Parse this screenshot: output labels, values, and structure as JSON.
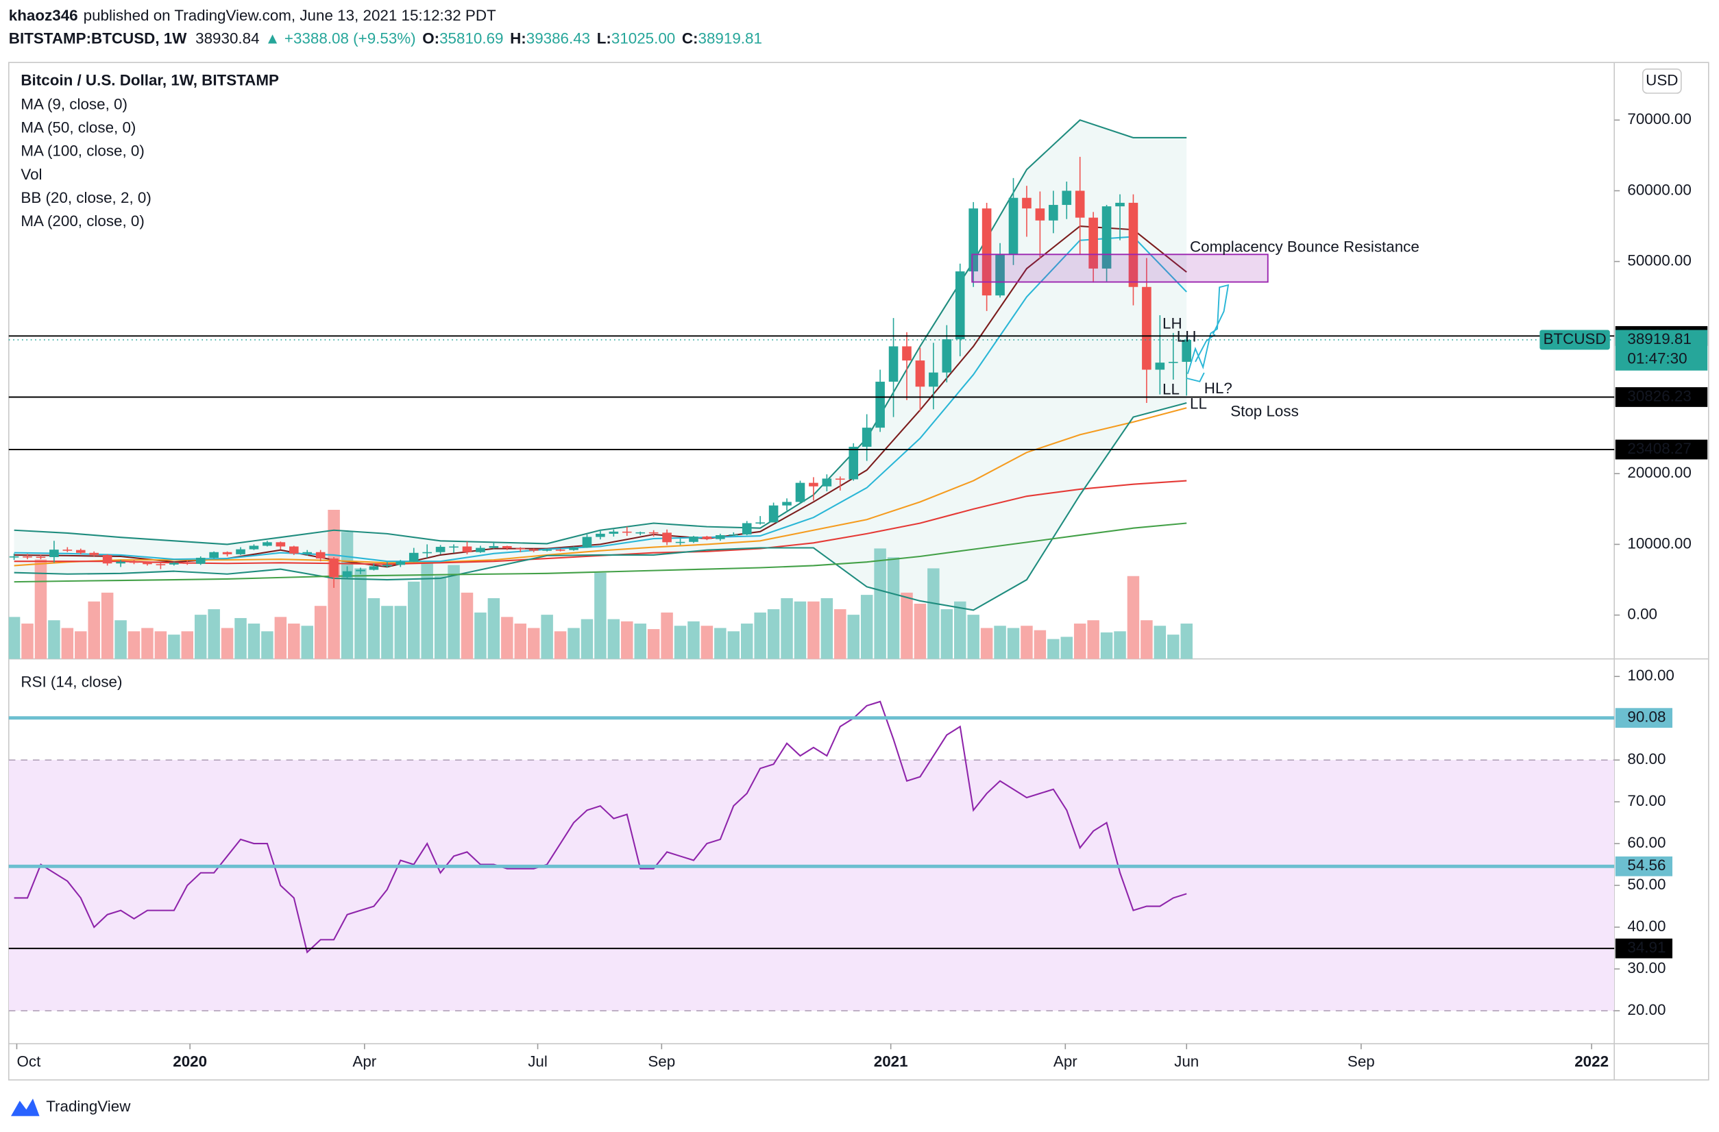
{
  "header": {
    "author": "khaoz346",
    "published": "published on TradingView.com, June 13, 2021 15:12:32 PDT",
    "symbol": "BITSTAMP:BTCUSD, 1W",
    "last": "38930.84",
    "change": "▲ +3388.08 (+9.53%)",
    "ohlc": [
      {
        "key": "O:",
        "value": "35810.69"
      },
      {
        "key": "H:",
        "value": "39386.43"
      },
      {
        "key": "L:",
        "value": "31025.00"
      },
      {
        "key": "C:",
        "value": "38919.81"
      }
    ]
  },
  "chart_data": {
    "type": "candlestick",
    "title": "Bitcoin / U.S. Dollar, 1W, BITSTAMP",
    "currency": "USD",
    "volume_name": "Vol",
    "up_color": "#26a69a",
    "down_color": "#ef5350",
    "volume_up_color": "#92d2cc",
    "volume_down_color": "#f7a9a7",
    "open": [
      8200,
      8300,
      8250,
      8200,
      9250,
      9200,
      8800,
      8500,
      7300,
      7550,
      7500,
      7200,
      7150,
      7400,
      7250,
      8100,
      8900,
      8600,
      9300,
      9800,
      10300,
      9700,
      8700,
      8900,
      8000,
      5350,
      6200,
      6400,
      6900,
      7100,
      7550,
      8800,
      8900,
      9650,
      9700,
      8900,
      9500,
      9750,
      9450,
      9300,
      9100,
      9250,
      9200,
      9550,
      11050,
      11500,
      11800,
      11650,
      11700,
      11650,
      10300,
      10350,
      11100,
      10750,
      11300,
      11400,
      13000,
      13100,
      15500,
      16000,
      18700,
      18200,
      19300,
      19200,
      23800,
      26500,
      33000,
      38000,
      36000,
      32300,
      34300,
      39000,
      48600,
      57500,
      45200,
      51000,
      59000,
      57500,
      55800,
      58000,
      60000,
      56200,
      49000,
      57800,
      58300,
      46400,
      34700,
      35700,
      35810.69
    ],
    "high": [
      8700,
      8650,
      8500,
      10500,
      9600,
      9400,
      9000,
      8600,
      7800,
      7800,
      7600,
      7400,
      7500,
      7700,
      8300,
      9000,
      9000,
      9600,
      10000,
      10500,
      10400,
      9800,
      9200,
      9200,
      8200,
      6900,
      6700,
      7300,
      7500,
      7800,
      9500,
      10000,
      9900,
      10000,
      10400,
      9800,
      10400,
      9800,
      9600,
      9400,
      9400,
      9400,
      9700,
      11400,
      12100,
      12100,
      12500,
      11800,
      12000,
      12100,
      10800,
      11200,
      11200,
      11500,
      11700,
      13300,
      14000,
      15900,
      16500,
      19000,
      19500,
      19900,
      19600,
      24300,
      28400,
      34700,
      42000,
      40000,
      37800,
      38500,
      41000,
      49700,
      58400,
      58300,
      52600,
      61800,
      60700,
      59900,
      60000,
      61300,
      64800,
      57000,
      58000,
      59500,
      59500,
      50500,
      42400,
      39900,
      39386.43
    ],
    "low": [
      7800,
      7900,
      7900,
      7400,
      8900,
      8600,
      8300,
      7000,
      6800,
      7200,
      7000,
      6500,
      7000,
      7100,
      7100,
      8000,
      8300,
      8500,
      9200,
      9700,
      9300,
      8500,
      8400,
      7600,
      3850,
      5200,
      5800,
      6300,
      6700,
      6800,
      7500,
      8100,
      8600,
      8800,
      8600,
      8800,
      9400,
      9200,
      8900,
      8900,
      9000,
      9000,
      9100,
      9500,
      10700,
      11100,
      11200,
      11300,
      11100,
      9900,
      9900,
      10200,
      10600,
      10500,
      11200,
      11300,
      12800,
      13200,
      14800,
      15800,
      16200,
      17500,
      17600,
      19000,
      21800,
      25900,
      28000,
      30400,
      28800,
      29100,
      32900,
      36600,
      46400,
      43000,
      44900,
      49500,
      53500,
      50400,
      54000,
      56000,
      51000,
      47000,
      47200,
      53000,
      43800,
      30000,
      31200,
      33300,
      31025
    ],
    "close": [
      8300,
      8250,
      8200,
      9250,
      9200,
      8800,
      8500,
      7300,
      7550,
      7500,
      7200,
      7150,
      7400,
      7250,
      8100,
      8900,
      8600,
      9300,
      9800,
      10300,
      9700,
      8700,
      8900,
      8000,
      5350,
      6200,
      6400,
      6900,
      7100,
      7550,
      8800,
      8900,
      9650,
      9700,
      8900,
      9500,
      9750,
      9450,
      9300,
      9100,
      9250,
      9200,
      9550,
      11050,
      11500,
      11800,
      11650,
      11700,
      11650,
      10300,
      10350,
      11100,
      10750,
      11300,
      11400,
      13000,
      13100,
      15500,
      16000,
      18700,
      18200,
      19300,
      19200,
      23800,
      26500,
      33000,
      38000,
      36000,
      32300,
      34300,
      39000,
      48600,
      57500,
      45200,
      51000,
      59000,
      57500,
      55800,
      58000,
      60000,
      56200,
      49000,
      57800,
      58300,
      46400,
      34700,
      35700,
      35800,
      38919.81
    ],
    "volume": [
      38000,
      32000,
      90000,
      35000,
      28000,
      25000,
      52000,
      60000,
      35000,
      25000,
      28000,
      25000,
      22000,
      25000,
      40000,
      45000,
      28000,
      37000,
      32000,
      25000,
      38000,
      32000,
      30000,
      48000,
      135000,
      115000,
      82000,
      55000,
      48000,
      48000,
      70000,
      88000,
      75000,
      85000,
      60000,
      42000,
      55000,
      38000,
      32000,
      28000,
      40000,
      25000,
      28000,
      36000,
      78000,
      36000,
      34000,
      32000,
      27000,
      42000,
      30000,
      34000,
      30000,
      28000,
      25000,
      32000,
      42000,
      45000,
      55000,
      52000,
      52000,
      55000,
      45000,
      40000,
      58000,
      100000,
      92000,
      60000,
      50000,
      82000,
      45000,
      52000,
      40000,
      28000,
      30000,
      28000,
      30000,
      26000,
      18000,
      20000,
      32000,
      35000,
      24000,
      25000,
      75000,
      35000,
      30000,
      22000,
      32000
    ],
    "xlim": [
      -0.4,
      120.1
    ],
    "xticks": [
      {
        "value": 0.2,
        "label": "Oct"
      },
      {
        "value": 13.2,
        "label": "2020"
      },
      {
        "value": 26.3,
        "label": "Apr"
      },
      {
        "value": 39.3,
        "label": "Jul"
      },
      {
        "value": 48.6,
        "label": "Sep"
      },
      {
        "value": 65.8,
        "label": "2021"
      },
      {
        "value": 78.9,
        "label": "Apr"
      },
      {
        "value": 88,
        "label": "Jun"
      },
      {
        "value": 101.1,
        "label": "Sep"
      },
      {
        "value": 118.4,
        "label": "2022"
      }
    ],
    "ylim": [
      -6200,
      78140
    ],
    "yticks": [
      {
        "value": 70000,
        "label": "70000.00"
      },
      {
        "value": 60000,
        "label": "60000.00"
      },
      {
        "value": 50000,
        "label": "50000.00"
      },
      {
        "value": 20000,
        "label": "20000.00"
      },
      {
        "value": 10000,
        "label": "10000.00"
      },
      {
        "value": 0,
        "label": "0.00"
      }
    ],
    "overlay_x": [
      0,
      4,
      8,
      12,
      16,
      20,
      24,
      28,
      32,
      36,
      40,
      44,
      48,
      52,
      56,
      60,
      64,
      68,
      72,
      76,
      80,
      84,
      88
    ],
    "overlays": [
      {
        "name": "MA (9, close, 0)",
        "color": "#7b1c1c",
        "values": [
          8500,
          8400,
          8300,
          7500,
          8000,
          9200,
          7800,
          6800,
          8500,
          9400,
          9400,
          10000,
          11400,
          10800,
          11800,
          16000,
          20500,
          29000,
          38000,
          49000,
          55000,
          54500,
          48500
        ]
      },
      {
        "name": "MA (50, close, 0)",
        "color": "#f59b1e",
        "values": [
          7000,
          7500,
          7800,
          7800,
          7800,
          7900,
          7700,
          7400,
          7500,
          7800,
          8500,
          9100,
          9600,
          10000,
          10500,
          12000,
          13500,
          16000,
          19000,
          23000,
          25500,
          27300,
          29300
        ]
      },
      {
        "name": "MA (100, close, 0)",
        "color": "#e53935",
        "values": [
          7600,
          7600,
          7600,
          7400,
          7300,
          7400,
          7300,
          7200,
          7400,
          7600,
          8000,
          8400,
          8800,
          9000,
          9400,
          10200,
          11500,
          13000,
          15000,
          16800,
          17800,
          18500,
          19000
        ]
      },
      {
        "name": "BB (20, close, 2, 0)",
        "color": "#1e8c7e",
        "basis_color": "#29b6d6",
        "fill": "#e6f4f1",
        "upper": [
          12000,
          11600,
          11000,
          10500,
          10000,
          11000,
          12000,
          11500,
          10500,
          10300,
          10100,
          12000,
          13000,
          12500,
          12300,
          17000,
          25000,
          38000,
          50000,
          63000,
          70000,
          67500,
          67500
        ],
        "basis": [
          8800,
          8700,
          8500,
          7900,
          8000,
          8800,
          8500,
          7600,
          7600,
          8700,
          9300,
          9700,
          10800,
          11000,
          11200,
          13800,
          18000,
          25000,
          34000,
          45000,
          53000,
          53500,
          45700
        ],
        "lower": [
          6000,
          5800,
          5900,
          6200,
          5800,
          6500,
          5200,
          5000,
          5200,
          6800,
          8400,
          8500,
          8500,
          9200,
          9500,
          9500,
          4000,
          2000,
          700,
          5000,
          17000,
          28000,
          30000
        ]
      },
      {
        "name": "MA (200, close, 0)",
        "color": "#43a047",
        "values": [
          4700,
          4800,
          4900,
          5000,
          5100,
          5300,
          5500,
          5600,
          5700,
          5800,
          5900,
          6100,
          6300,
          6500,
          6700,
          7000,
          7500,
          8300,
          9300,
          10300,
          11300,
          12300,
          13000
        ]
      }
    ],
    "levels": [
      {
        "value": 39464.49,
        "color": "#000000"
      },
      {
        "value": 30826.23,
        "color": "#000000"
      },
      {
        "value": 23408.27,
        "color": "#000000"
      }
    ],
    "last_price": {
      "name": "BTCUSD",
      "value": 38919.81,
      "countdown": "01:47:30",
      "color": "#26a69a"
    },
    "zone": {
      "x": [
        71.9,
        94.1
      ],
      "y": [
        47100,
        51000
      ],
      "color": "#9c27b0"
    },
    "annotations": [
      {
        "text": "Complacency Bounce Resistance",
        "color": "#2962ff"
      },
      {
        "text": "LH",
        "color": "#2962ff"
      },
      {
        "text": "LH",
        "color": "#2962ff"
      },
      {
        "text": "LL",
        "color": "#2962ff"
      },
      {
        "text": "LL",
        "color": "#2962ff"
      },
      {
        "text": "HL?",
        "color": "#f23645"
      },
      {
        "text": "Stop Loss",
        "color": "#f23645"
      }
    ],
    "rsi": {
      "title": "RSI (14, close)",
      "color": "#8e24aa",
      "band": [
        20,
        80
      ],
      "band_color": "#f5e6fb",
      "values": [
        47,
        47,
        55,
        53,
        51,
        47,
        40,
        43,
        44,
        42,
        44,
        44,
        44,
        50,
        53,
        53,
        57,
        61,
        60,
        60,
        50,
        47,
        34,
        37,
        37,
        43,
        44,
        45,
        49,
        56,
        55,
        60,
        53,
        57,
        58,
        55,
        55,
        54,
        54,
        54,
        55,
        60,
        65,
        68,
        69,
        66,
        67,
        54,
        54,
        58,
        57,
        56,
        60,
        61,
        69,
        72,
        78,
        79,
        84,
        81,
        83,
        81,
        88,
        90,
        93,
        94,
        85,
        75,
        76,
        81,
        86,
        88,
        68,
        72,
        75,
        73,
        71,
        72,
        73,
        68,
        59,
        63,
        65,
        53,
        44,
        45,
        45,
        47,
        48
      ],
      "ylim": [
        12.1,
        104.2
      ],
      "yticks": [
        {
          "value": 100,
          "label": "100.00"
        },
        {
          "value": 80,
          "label": "80.00"
        },
        {
          "value": 70,
          "label": "70.00"
        },
        {
          "value": 60,
          "label": "60.00"
        },
        {
          "value": 50,
          "label": "50.00"
        },
        {
          "value": 40,
          "label": "40.00"
        },
        {
          "value": 30,
          "label": "30.00"
        },
        {
          "value": 20,
          "label": "20.00"
        }
      ],
      "levels": [
        {
          "value": 90.08,
          "color": "#6cbfd0"
        },
        {
          "value": 54.56,
          "color": "#6cbfd0"
        },
        {
          "value": 34.91,
          "color": "#000000"
        }
      ]
    }
  },
  "footer": {
    "brand": "TradingView"
  }
}
